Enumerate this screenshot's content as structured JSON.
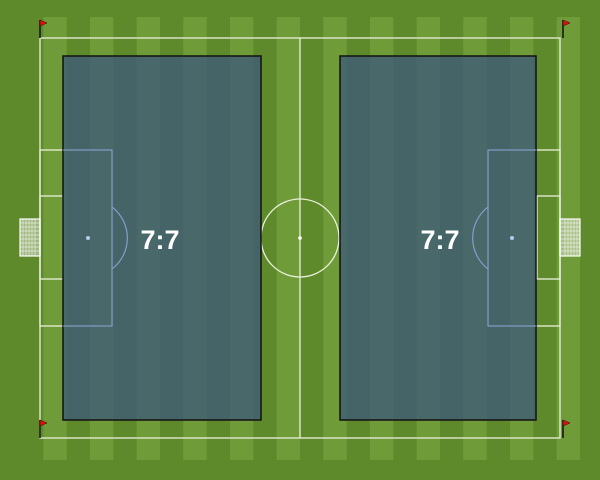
{
  "pitch": {
    "colors": {
      "grass_dark": "#5f8a2b",
      "grass_light": "#6f9b38",
      "lines": "#e8f0dc",
      "overlay": "#3d5a78",
      "flag": "#e01010",
      "box_lines": "#8aa0d0"
    },
    "zones": [
      {
        "label": "7:7"
      },
      {
        "label": "7:7"
      }
    ]
  }
}
